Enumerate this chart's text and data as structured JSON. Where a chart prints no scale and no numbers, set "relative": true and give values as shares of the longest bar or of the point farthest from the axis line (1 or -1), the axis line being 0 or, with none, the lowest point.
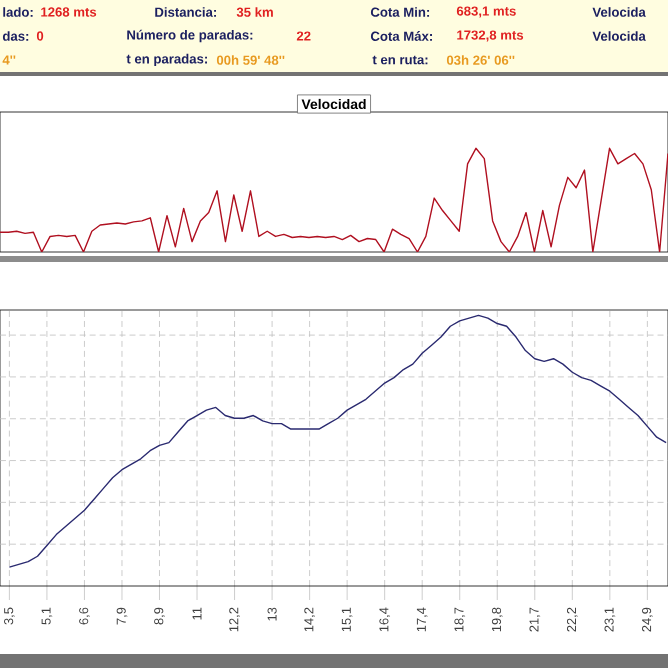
{
  "chart_data": [
    {
      "type": "other",
      "annotations": [
        "lado:",
        "1268 mts",
        "Distancia:",
        "35 km",
        "Cota Min:",
        "683,1 mts",
        "Velocida",
        "das:",
        "0",
        "Número de paradas:",
        "22",
        "Cota Máx:",
        "1732,8 mts",
        "Velocida",
        "4''",
        "t en paradas:",
        "00h 59' 48''",
        "t en ruta:",
        "03h 26' 06''"
      ]
    },
    {
      "type": "line",
      "title": "Velocidad",
      "relative": true,
      "categories": [
        null,
        null,
        null,
        null,
        null,
        null,
        null,
        null,
        null,
        null,
        null,
        null,
        null,
        null,
        null,
        null,
        null,
        null,
        null,
        null,
        null,
        null,
        null,
        null,
        null,
        null,
        null,
        null,
        null,
        null,
        null,
        null,
        null,
        null,
        null,
        null,
        null,
        null,
        null,
        null,
        null,
        null,
        null,
        null,
        null,
        null,
        null,
        null,
        null,
        null,
        null,
        null,
        null,
        null,
        null,
        null,
        null,
        null,
        null,
        null,
        null,
        null,
        null,
        null,
        null,
        null,
        null,
        null,
        null,
        null,
        null,
        null,
        null,
        null,
        null,
        null,
        null,
        null,
        null,
        null,
        null
      ],
      "series": [
        {
          "color": "#b01020",
          "values": [
            0.19,
            0.19,
            0.2,
            0.18,
            0.19,
            0,
            0.15,
            0.16,
            0.15,
            0.16,
            0,
            0.2,
            0.26,
            0.27,
            0.28,
            0.27,
            0.29,
            0.3,
            0.33,
            0,
            0.35,
            0.05,
            0.42,
            0.1,
            0.3,
            0.38,
            0.59,
            0.1,
            0.55,
            0.2,
            0.59,
            0.15,
            0.2,
            0.15,
            0.17,
            0.14,
            0.15,
            0.14,
            0.15,
            0.14,
            0.15,
            0.12,
            0.16,
            0.1,
            0.13,
            0.12,
            0,
            0.22,
            0.17,
            0.13,
            0,
            0.15,
            0.52,
            0.4,
            0.3,
            0.2,
            0.85,
            1,
            0.9,
            0.3,
            0.1,
            0,
            0.15,
            0.38,
            0,
            0.4,
            0.05,
            0.45,
            0.72,
            0.62,
            0.79,
            0,
            0.5,
            1,
            0.85,
            0.9,
            0.95,
            0.85,
            0.6,
            0,
            0.95
          ]
        }
      ]
    },
    {
      "type": "line",
      "relative": true,
      "grid": true,
      "categories": [
        "3,5",
        null,
        null,
        null,
        "5,1",
        null,
        null,
        null,
        "6,6",
        null,
        null,
        null,
        "7,9",
        null,
        null,
        null,
        "8,9",
        null,
        null,
        null,
        "11",
        null,
        null,
        null,
        "12,2",
        null,
        null,
        null,
        "13",
        null,
        null,
        null,
        "14,2",
        null,
        null,
        null,
        "15,1",
        null,
        null,
        null,
        "16,4",
        null,
        null,
        null,
        "17,4",
        null,
        null,
        null,
        "18,7",
        null,
        null,
        null,
        "19,8",
        null,
        null,
        null,
        "21,7",
        null,
        null,
        null,
        "22,2",
        null,
        null,
        null,
        "23,1",
        null,
        null,
        null,
        "24,9",
        null,
        null
      ],
      "series": [
        {
          "color": "#2a2a70",
          "values": [
            0.07,
            0.08,
            0.09,
            0.11,
            0.15,
            0.19,
            0.22,
            0.25,
            0.28,
            0.32,
            0.36,
            0.4,
            0.43,
            0.45,
            0.47,
            0.5,
            0.52,
            0.53,
            0.57,
            0.61,
            0.63,
            0.65,
            0.66,
            0.63,
            0.62,
            0.62,
            0.63,
            0.61,
            0.6,
            0.6,
            0.58,
            0.58,
            0.58,
            0.58,
            0.6,
            0.62,
            0.65,
            0.67,
            0.69,
            0.72,
            0.75,
            0.77,
            0.8,
            0.82,
            0.86,
            0.89,
            0.92,
            0.96,
            0.98,
            0.99,
            1,
            0.99,
            0.97,
            0.96,
            0.92,
            0.87,
            0.84,
            0.83,
            0.84,
            0.82,
            0.79,
            0.77,
            0.76,
            0.74,
            0.72,
            0.69,
            0.66,
            0.63,
            0.59,
            0.55,
            0.53
          ]
        }
      ]
    }
  ]
}
